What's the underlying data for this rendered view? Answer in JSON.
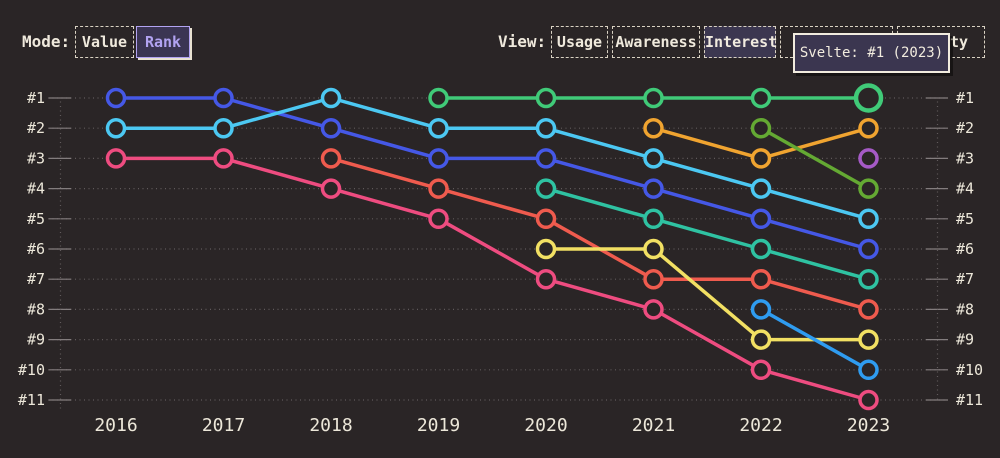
{
  "header": {
    "mode": {
      "label": "Mode:",
      "options": [
        {
          "label": "Value",
          "selected": false
        },
        {
          "label": "Rank",
          "selected": true
        }
      ]
    },
    "view": {
      "label": "View:",
      "options": [
        {
          "label": "Usage",
          "selected": false
        },
        {
          "label": "Awareness",
          "selected": false
        },
        {
          "label": "Interest",
          "selected": true
        },
        {
          "label": "",
          "selected": false
        },
        {
          "label": "ty",
          "selected": false
        }
      ]
    }
  },
  "tooltip": {
    "text": "Svelte: #1 (2023)"
  },
  "colors": {
    "background": "#2a2526",
    "text_cream": "#ece7d9",
    "accent_purple": "#b2a3f2",
    "tooltip_bg": "#3b3650",
    "grid": "#615b5c",
    "tick": "#837d7e"
  },
  "chart_data": {
    "type": "line",
    "subtype": "bump-rank",
    "x": [
      "2016",
      "2017",
      "2018",
      "2019",
      "2020",
      "2021",
      "2022",
      "2023"
    ],
    "rank_labels": [
      "#1",
      "#2",
      "#3",
      "#4",
      "#5",
      "#6",
      "#7",
      "#8",
      "#9",
      "#10",
      "#11"
    ],
    "ylim": [
      1,
      11
    ],
    "grid": "dotted",
    "series": [
      {
        "id": "blue",
        "color": "#4558e6",
        "ranks": [
          1,
          1,
          2,
          3,
          3,
          4,
          5,
          6
        ]
      },
      {
        "id": "cyan",
        "color": "#4cc8f2",
        "ranks": [
          2,
          2,
          1,
          2,
          2,
          3,
          4,
          5
        ]
      },
      {
        "id": "pink",
        "color": "#ee4c80",
        "ranks": [
          3,
          3,
          4,
          5,
          7,
          8,
          10,
          11
        ]
      },
      {
        "id": "coral",
        "color": "#ef5b4e",
        "ranks": [
          null,
          null,
          3,
          4,
          5,
          7,
          7,
          8
        ]
      },
      {
        "id": "svelte",
        "color": "#40ca78",
        "ranks": [
          null,
          null,
          null,
          1,
          1,
          1,
          1,
          1
        ]
      },
      {
        "id": "teal",
        "color": "#2fc2a2",
        "ranks": [
          null,
          null,
          null,
          null,
          4,
          5,
          6,
          7
        ]
      },
      {
        "id": "yellow",
        "color": "#f2e063",
        "ranks": [
          null,
          null,
          null,
          null,
          6,
          6,
          9,
          9
        ]
      },
      {
        "id": "amber",
        "color": "#f0a430",
        "ranks": [
          null,
          null,
          null,
          null,
          null,
          2,
          3,
          2
        ]
      },
      {
        "id": "grass",
        "color": "#64a933",
        "ranks": [
          null,
          null,
          null,
          null,
          null,
          null,
          2,
          4
        ]
      },
      {
        "id": "dodger",
        "color": "#2f9cf0",
        "ranks": [
          null,
          null,
          null,
          null,
          null,
          null,
          8,
          10
        ]
      },
      {
        "id": "purple",
        "color": "#a55ac6",
        "ranks": [
          null,
          null,
          null,
          null,
          null,
          null,
          null,
          3
        ]
      }
    ],
    "highlight": {
      "series": "svelte",
      "x": "2023",
      "rank": 1
    }
  }
}
